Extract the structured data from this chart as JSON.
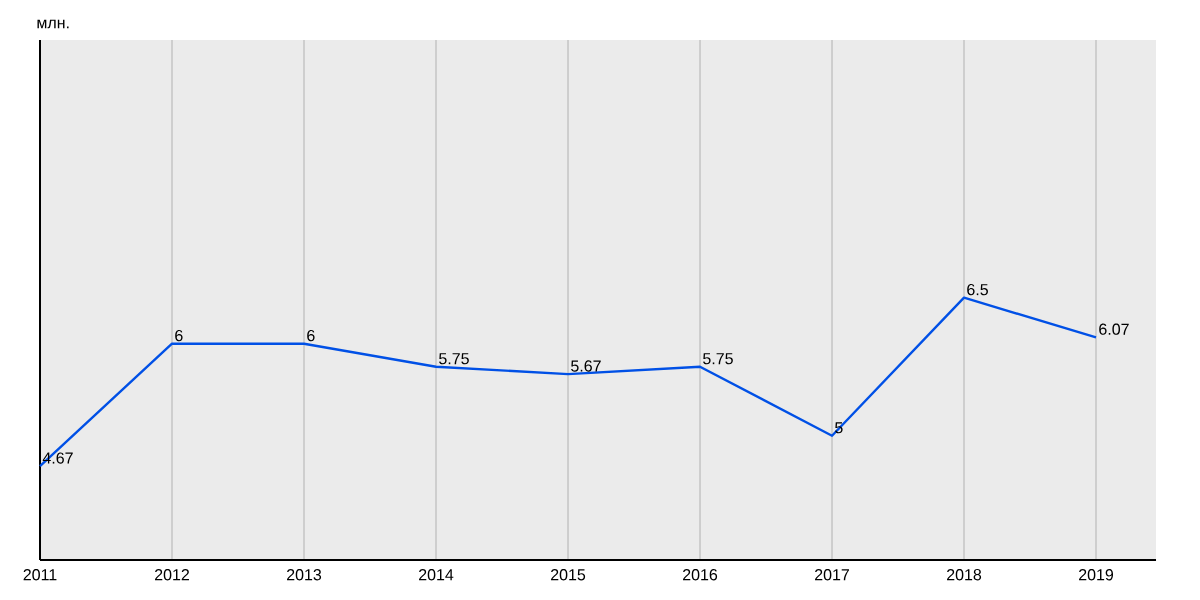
{
  "chart_data": {
    "type": "line",
    "ylabel": "млн.",
    "categories": [
      "2011",
      "2012",
      "2013",
      "2014",
      "2015",
      "2016",
      "2017",
      "2018",
      "2019"
    ],
    "series": [
      {
        "color": "#0050e6",
        "values": [
          4.67,
          6,
          6,
          5.75,
          5.67,
          5.75,
          5,
          6.5,
          6.07
        ]
      }
    ],
    "ylim": [
      3.65,
      9.3
    ],
    "data_labels": true,
    "grid": "x",
    "tick_labels": "x",
    "marker": "none",
    "line_style": "solid"
  }
}
